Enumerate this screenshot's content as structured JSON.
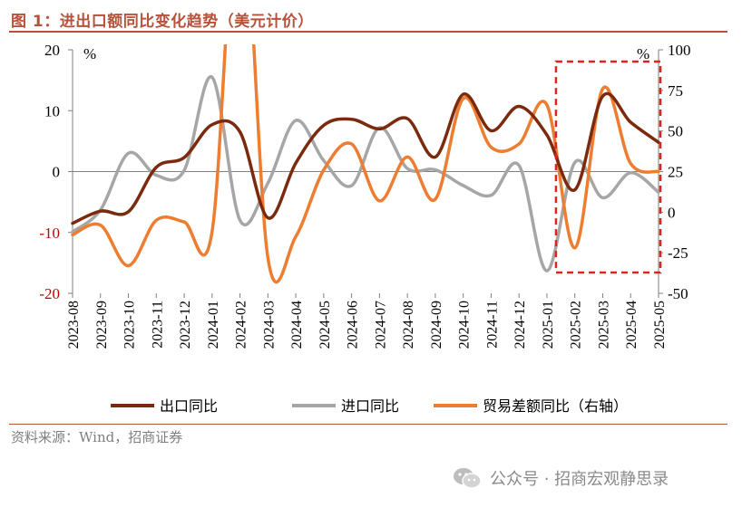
{
  "title": "图 1：进出口额同比变化趋势（美元计价）",
  "source": "资料来源：Wind，招商证券",
  "watermark": "公众号 · 招商宏观静思录",
  "colors": {
    "export": "#7b2a0e",
    "import": "#a6a6a6",
    "trade_balance": "#ed7d31",
    "accent": "#b5523a",
    "highlight_box": "#e3211c"
  },
  "chart_data": {
    "type": "line",
    "categories": [
      "2023-08",
      "2023-09",
      "2023-10",
      "2023-11",
      "2023-12",
      "2024-01",
      "2024-02",
      "2024-03",
      "2024-04",
      "2024-05",
      "2024-06",
      "2024-07",
      "2024-08",
      "2024-09",
      "2024-10",
      "2024-11",
      "2024-12",
      "2025-01",
      "2025-02",
      "2025-03",
      "2025-04",
      "2025-05"
    ],
    "left_axis": {
      "unit": "%",
      "ylim": [
        -20,
        20
      ],
      "ticks": [
        -20,
        -10,
        0,
        10,
        20
      ]
    },
    "right_axis": {
      "unit": "%",
      "ylim": [
        -50,
        100
      ],
      "ticks": [
        -50,
        -25,
        0,
        25,
        50,
        75,
        100
      ]
    },
    "series": [
      {
        "name": "出口同比",
        "axis": "left",
        "color": "#7b2a0e",
        "values": [
          -8.5,
          -6.5,
          -6.6,
          0.7,
          2.3,
          7.7,
          6.5,
          -7.6,
          1.4,
          7.6,
          8.6,
          7.0,
          8.7,
          2.4,
          12.7,
          6.7,
          10.7,
          6.0,
          -3.0,
          12.4,
          8.1,
          4.8
        ]
      },
      {
        "name": "进口同比",
        "axis": "left",
        "color": "#a6a6a6",
        "values": [
          -9.9,
          -6.3,
          3.0,
          -0.6,
          0.2,
          15.5,
          -8.0,
          -1.9,
          8.4,
          1.8,
          -2.3,
          7.2,
          0.5,
          0.3,
          -2.3,
          -3.9,
          1.0,
          -16.3,
          1.5,
          -4.3,
          -0.2,
          -3.4
        ]
      },
      {
        "name": "贸易差额同比（右轴）",
        "axis": "right",
        "color": "#ed7d31",
        "values": [
          -14,
          -8,
          -33,
          -5,
          -6,
          -12,
          205,
          -28,
          -15,
          26,
          42,
          7,
          34,
          8,
          70,
          40,
          42,
          66,
          -22,
          76,
          30,
          25
        ]
      }
    ],
    "highlight": {
      "from": "2025-01",
      "to": "2025-05"
    },
    "grid": false,
    "legend": "bottom"
  }
}
